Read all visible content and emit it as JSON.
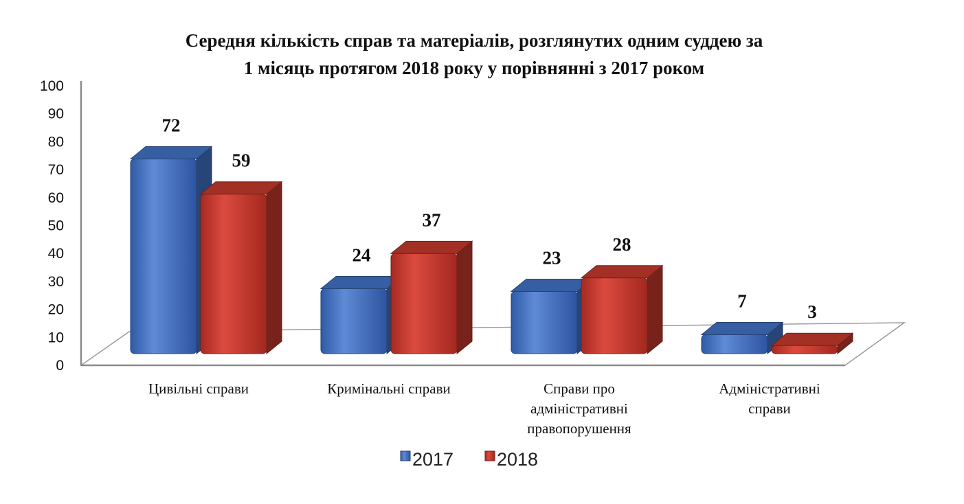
{
  "chart_data": {
    "type": "bar",
    "title": "Середня кількість справ та матеріалів, розглянутих одним  суддею за 1 місяць протягом 2018 року у порівнянні з  2017 роком",
    "title_lines": [
      "Середня кількість справ та матеріалів, розглянутих одним  суддею за",
      "1 місяць протягом 2018 року у порівнянні з  2017 роком"
    ],
    "categories": [
      "Цивільні справи",
      "Кримінальні справи",
      "Справи про адміністративні правопорушення",
      "Адміністративні справи"
    ],
    "category_lines": [
      [
        "Цивільні справи"
      ],
      [
        "Кримінальні справи"
      ],
      [
        "Справи про",
        "адміністративні",
        "правопорушення"
      ],
      [
        "Адміністративні",
        "справи"
      ]
    ],
    "series": [
      {
        "name": "2017",
        "values": [
          72,
          24,
          23,
          7
        ],
        "color": "#3f6fc0"
      },
      {
        "name": "2018",
        "values": [
          59,
          37,
          28,
          3
        ],
        "color": "#c0392b"
      }
    ],
    "ylim": [
      0,
      100
    ],
    "yticks": [
      0,
      10,
      20,
      30,
      40,
      50,
      60,
      70,
      80,
      90,
      100
    ],
    "xlabel": "",
    "ylabel": "",
    "grid": false,
    "legend_position": "bottom",
    "style": "3d-clustered-column"
  }
}
